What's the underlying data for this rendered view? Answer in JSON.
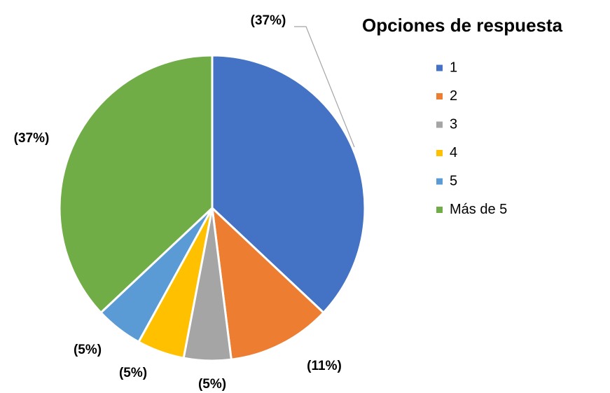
{
  "chart_data": {
    "type": "pie",
    "title": "Opciones de respuesta",
    "categories": [
      "1",
      "2",
      "3",
      "4",
      "5",
      "Más de 5"
    ],
    "values": [
      37,
      11,
      5,
      5,
      5,
      37
    ],
    "value_labels": [
      "(37%)",
      "(11%)",
      "(5%)",
      "(5%)",
      "(5%)",
      "(37%)"
    ],
    "colors": [
      "#4472c4",
      "#ed7d31",
      "#a5a5a5",
      "#ffc000",
      "#5b9bd5",
      "#70ad47"
    ],
    "legend": "right"
  }
}
